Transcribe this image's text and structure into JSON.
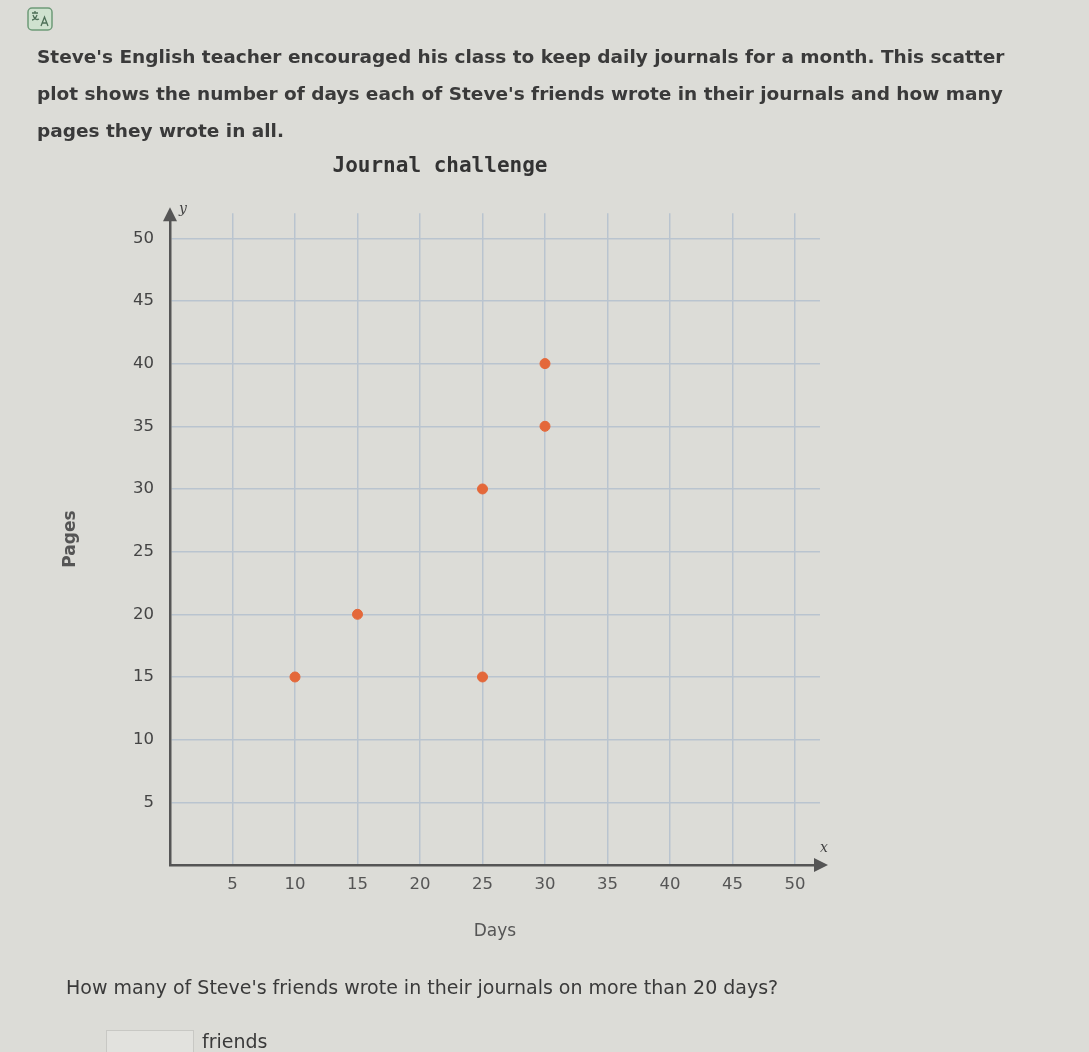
{
  "chart_data": {
    "type": "scatter",
    "title": "Journal challenge",
    "xlabel": "Days",
    "ylabel": "Pages",
    "annotations": [
      "Steve's English teacher encouraged his class to keep daily journals for a month. This scatter plot shows the number of days each of Steve's friends wrote in their journals and how many pages they wrote in all.",
      "How many of Steve's friends wrote in their journals on more than 20 days?",
      "friends",
      "x",
      "y"
    ],
    "x": [
      10,
      15,
      25,
      25,
      30,
      30
    ],
    "values": [
      15,
      20,
      15,
      30,
      35,
      40
    ],
    "color": "#e4683a",
    "xlim": [
      0,
      52
    ],
    "ylim": [
      0,
      52
    ],
    "xticks": [
      5,
      10,
      15,
      20,
      25,
      30,
      35,
      40,
      45,
      50
    ],
    "yticks": [
      5,
      10,
      15,
      20,
      25,
      30,
      35,
      40,
      45,
      50
    ],
    "grid": true,
    "marker": "circle"
  }
}
